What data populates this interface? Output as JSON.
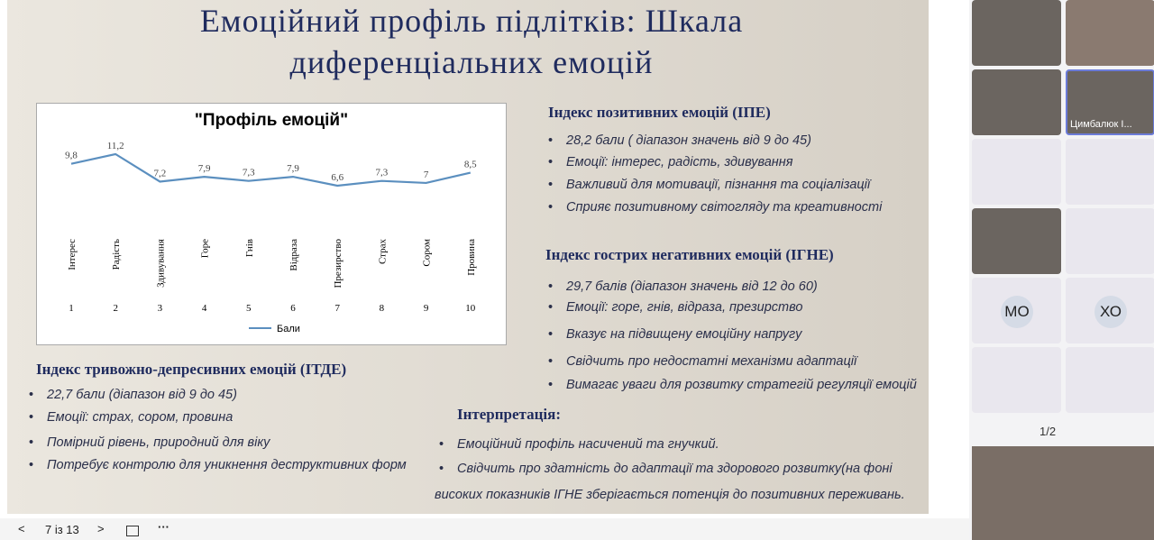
{
  "slide": {
    "title": "Емоційний профіль підлітків: Шкала диференціальних емоцій",
    "ipe": {
      "heading": "Індекс позитивних емоцій (ІПЕ)",
      "items": [
        "28,2 бали ( діапазон значень від 9 до 45)",
        "Емоції: інтерес, радість, здивування",
        "Важливий для мотивації, пізнання та соціалізації",
        "Сприяє позитивному світогляду та креативності"
      ]
    },
    "igne": {
      "heading": "Індекс гострих негативних емоцій (ІГНЕ)",
      "items": [
        "29,7 балів (діапазон значень від 12 до 60)",
        "Емоції: горе, гнів, відраза, презирство",
        "Вказує на підвищену емоційну напругу",
        "Свідчить про недостатні механізми адаптації",
        "Вимагає уваги для розвитку стратегій регуляції емоцій"
      ]
    },
    "itde": {
      "heading": "Індекс тривожно-депресивних емоцій (ІТДЕ)",
      "items": [
        "22,7 бали (діапазон від 9 до 45)",
        "Емоції: страх, сором, провина",
        "Помірний рівень, природний для віку",
        "Потребує контролю для уникнення деструктивних форм"
      ]
    },
    "interpretation": {
      "heading": "Інтерпретація:",
      "items": [
        "Емоційний профіль  насичений та гнучкий.",
        "Свідчить про здатність до адаптації  та здорового розвитку(на фоні високих показників ІГНЕ зберігається потенція до позитивних переживань."
      ]
    }
  },
  "chart_data": {
    "type": "line",
    "title": "\"Профіль емоцій\"",
    "categories": [
      "1",
      "2",
      "3",
      "4",
      "5",
      "6",
      "7",
      "8",
      "9",
      "10"
    ],
    "category_names": [
      "Інтерес",
      "Радість",
      "Здивування",
      "Горе",
      "Гнів",
      "Відраза",
      "Презирство",
      "Страх",
      "Сором",
      "Провина"
    ],
    "series": [
      {
        "name": "Бали",
        "color": "#5b8fbf",
        "values": [
          9.8,
          11.2,
          7.2,
          7.9,
          7.3,
          7.9,
          6.6,
          7.3,
          7,
          8.5
        ],
        "value_labels": [
          "9,8",
          "11,2",
          "7,2",
          "7,9",
          "7,3",
          "7,9",
          "6,6",
          "7,3",
          "7",
          "8,5"
        ]
      }
    ]
  },
  "toolbar": {
    "page": "7 із 13"
  },
  "participants": {
    "tiles": [
      "Цимбалюк І...",
      "МО",
      "ХО"
    ],
    "pager": "1/2"
  }
}
